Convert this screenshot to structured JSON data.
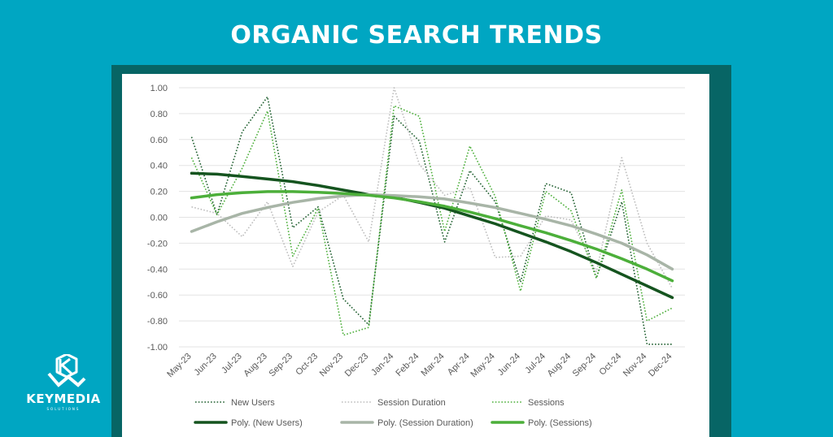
{
  "page": {
    "title": "ORGANIC SEARCH TRENDS",
    "background": "#00a6c2",
    "frame_color": "#076565"
  },
  "logo": {
    "icon": "km-logo-icon",
    "text": "KEYMEDIA",
    "subtext": "SOLUTIONS"
  },
  "chart_data": {
    "type": "line",
    "categories": [
      "May-23",
      "Jun-23",
      "Jul-23",
      "Aug-23",
      "Sep-23",
      "Oct-23",
      "Nov-23",
      "Dec-23",
      "Jan-24",
      "Feb-24",
      "Mar-24",
      "Apr-24",
      "May-24",
      "Jun-24",
      "Jul-24",
      "Aug-24",
      "Sep-24",
      "Oct-24",
      "Nov-24",
      "Dec-24"
    ],
    "ylim": [
      -1.0,
      1.0
    ],
    "yticks": [
      "1.00",
      "0.80",
      "0.60",
      "0.40",
      "0.20",
      "0.00",
      "-0.20",
      "-0.40",
      "-0.60",
      "-0.80",
      "-1.00"
    ],
    "grid": true,
    "legend_position": "bottom",
    "series": [
      {
        "name": "New Users",
        "style": "dotted",
        "color": "#1e5e2e",
        "values": [
          0.62,
          0.02,
          0.66,
          0.93,
          -0.08,
          0.08,
          -0.63,
          -0.83,
          0.78,
          0.59,
          -0.19,
          0.36,
          0.12,
          -0.5,
          0.26,
          0.19,
          -0.47,
          0.12,
          -0.98,
          -0.98
        ]
      },
      {
        "name": "Session Duration",
        "style": "dotted",
        "color": "#bdbdbd",
        "values": [
          0.08,
          0.03,
          -0.15,
          0.12,
          -0.38,
          0.04,
          0.17,
          -0.19,
          1.0,
          0.41,
          0.17,
          0.23,
          -0.31,
          -0.3,
          0.01,
          -0.02,
          -0.42,
          0.46,
          -0.2,
          -0.55
        ]
      },
      {
        "name": "Sessions",
        "style": "dotted",
        "color": "#4caf3a",
        "values": [
          0.46,
          0.02,
          0.38,
          0.82,
          -0.3,
          0.07,
          -0.91,
          -0.85,
          0.86,
          0.78,
          -0.11,
          0.55,
          0.16,
          -0.57,
          0.2,
          0.05,
          -0.47,
          0.21,
          -0.8,
          -0.7
        ]
      },
      {
        "name": "Poly. (New Users)",
        "style": "solid",
        "color": "#15541f",
        "values": [
          0.34,
          0.333,
          0.315,
          0.295,
          0.275,
          0.245,
          0.21,
          0.175,
          0.155,
          0.115,
          0.07,
          0.01,
          -0.05,
          -0.12,
          -0.19,
          -0.265,
          -0.35,
          -0.44,
          -0.53,
          -0.62
        ]
      },
      {
        "name": "Poly. (Session Duration)",
        "style": "solid",
        "color": "#a8b5a7",
        "values": [
          -0.11,
          -0.035,
          0.03,
          0.075,
          0.115,
          0.145,
          0.165,
          0.175,
          0.168,
          0.158,
          0.142,
          0.11,
          0.075,
          0.03,
          -0.015,
          -0.065,
          -0.13,
          -0.2,
          -0.29,
          -0.4
        ]
      },
      {
        "name": "Poly. (Sessions)",
        "style": "solid",
        "color": "#4caf3a",
        "values": [
          0.15,
          0.175,
          0.19,
          0.198,
          0.198,
          0.193,
          0.183,
          0.17,
          0.15,
          0.12,
          0.085,
          0.04,
          -0.01,
          -0.065,
          -0.12,
          -0.18,
          -0.245,
          -0.32,
          -0.4,
          -0.49
        ]
      }
    ]
  }
}
